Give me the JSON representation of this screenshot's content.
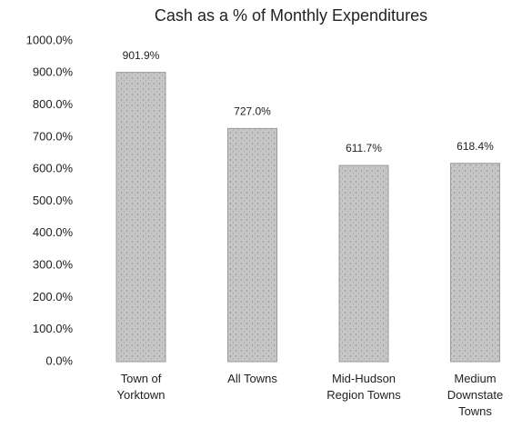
{
  "chart_data": {
    "type": "bar",
    "title": "Cash as a % of Monthly Expenditures",
    "categories": [
      "Town of\nYorktown",
      "All Towns",
      "Mid-Hudson\nRegion Towns",
      "Medium\nDownstate\nTowns"
    ],
    "values": [
      901.9,
      727.0,
      611.7,
      618.4
    ],
    "value_labels": [
      "901.9%",
      "727.0%",
      "611.7%",
      "618.4%"
    ],
    "color": "#c6c6c6",
    "ylim": [
      0,
      1000
    ],
    "yticks": [
      {
        "value": 0,
        "label": "0.0%"
      },
      {
        "value": 100,
        "label": "100.0%"
      },
      {
        "value": 200,
        "label": "200.0%"
      },
      {
        "value": 300,
        "label": "300.0%"
      },
      {
        "value": 400,
        "label": "400.0%"
      },
      {
        "value": 500,
        "label": "500.0%"
      },
      {
        "value": 600,
        "label": "600.0%"
      },
      {
        "value": 700,
        "label": "700.0%"
      },
      {
        "value": 800,
        "label": "800.0%"
      },
      {
        "value": 900,
        "label": "900.0%"
      },
      {
        "value": 1000,
        "label": "1000.0%"
      }
    ],
    "grid": false
  }
}
